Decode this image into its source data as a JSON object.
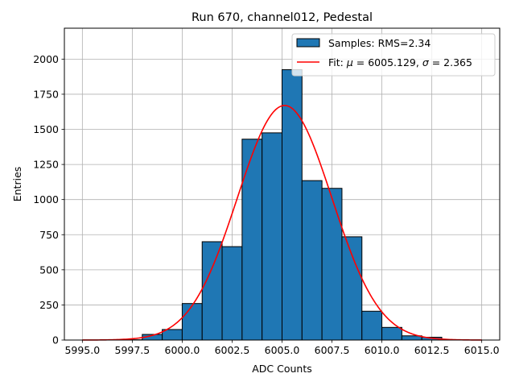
{
  "chart_data": {
    "type": "bar",
    "title": "Run 670, channel012, Pedestal",
    "xlabel": "ADC Counts",
    "ylabel": "Entries",
    "xlim": [
      5994.1,
      6015.9
    ],
    "ylim": [
      0,
      2220
    ],
    "grid": true,
    "legend_position": "upper right",
    "x_ticks": [
      5995.0,
      5997.5,
      6000.0,
      6002.5,
      6005.0,
      6007.5,
      6010.0,
      6012.5,
      6015.0
    ],
    "x_tick_labels": [
      "5995.0",
      "5997.5",
      "6000.0",
      "6002.5",
      "6005.0",
      "6007.5",
      "6010.0",
      "6012.5",
      "6015.0"
    ],
    "y_ticks": [
      0,
      250,
      500,
      750,
      1000,
      1250,
      1500,
      1750,
      2000
    ],
    "y_tick_labels": [
      "0",
      "250",
      "500",
      "750",
      "1000",
      "1250",
      "1500",
      "1750",
      "2000"
    ],
    "series": [
      {
        "name": "Samples: RMS=2.34",
        "kind": "histogram",
        "color": "#1f77b4",
        "edge_color": "#000000",
        "bin_edges": [
          5997,
          5998,
          5999,
          6000,
          6001,
          6002,
          6003,
          6004,
          6005,
          6006,
          6007,
          6008,
          6009,
          6010,
          6011,
          6012,
          6013
        ],
        "values": [
          2,
          40,
          75,
          260,
          700,
          665,
          1430,
          1475,
          1925,
          1135,
          1080,
          735,
          205,
          90,
          30,
          20
        ]
      },
      {
        "name_parts": [
          "Fit: ",
          "μ",
          " = 6005.129, ",
          "σ",
          " = 2.365"
        ],
        "kind": "gaussian-fit",
        "color": "#ff0000",
        "mu": 6005.129,
        "sigma": 2.365,
        "amplitude": 1670,
        "x_range": [
          5995,
          6015
        ]
      }
    ]
  }
}
